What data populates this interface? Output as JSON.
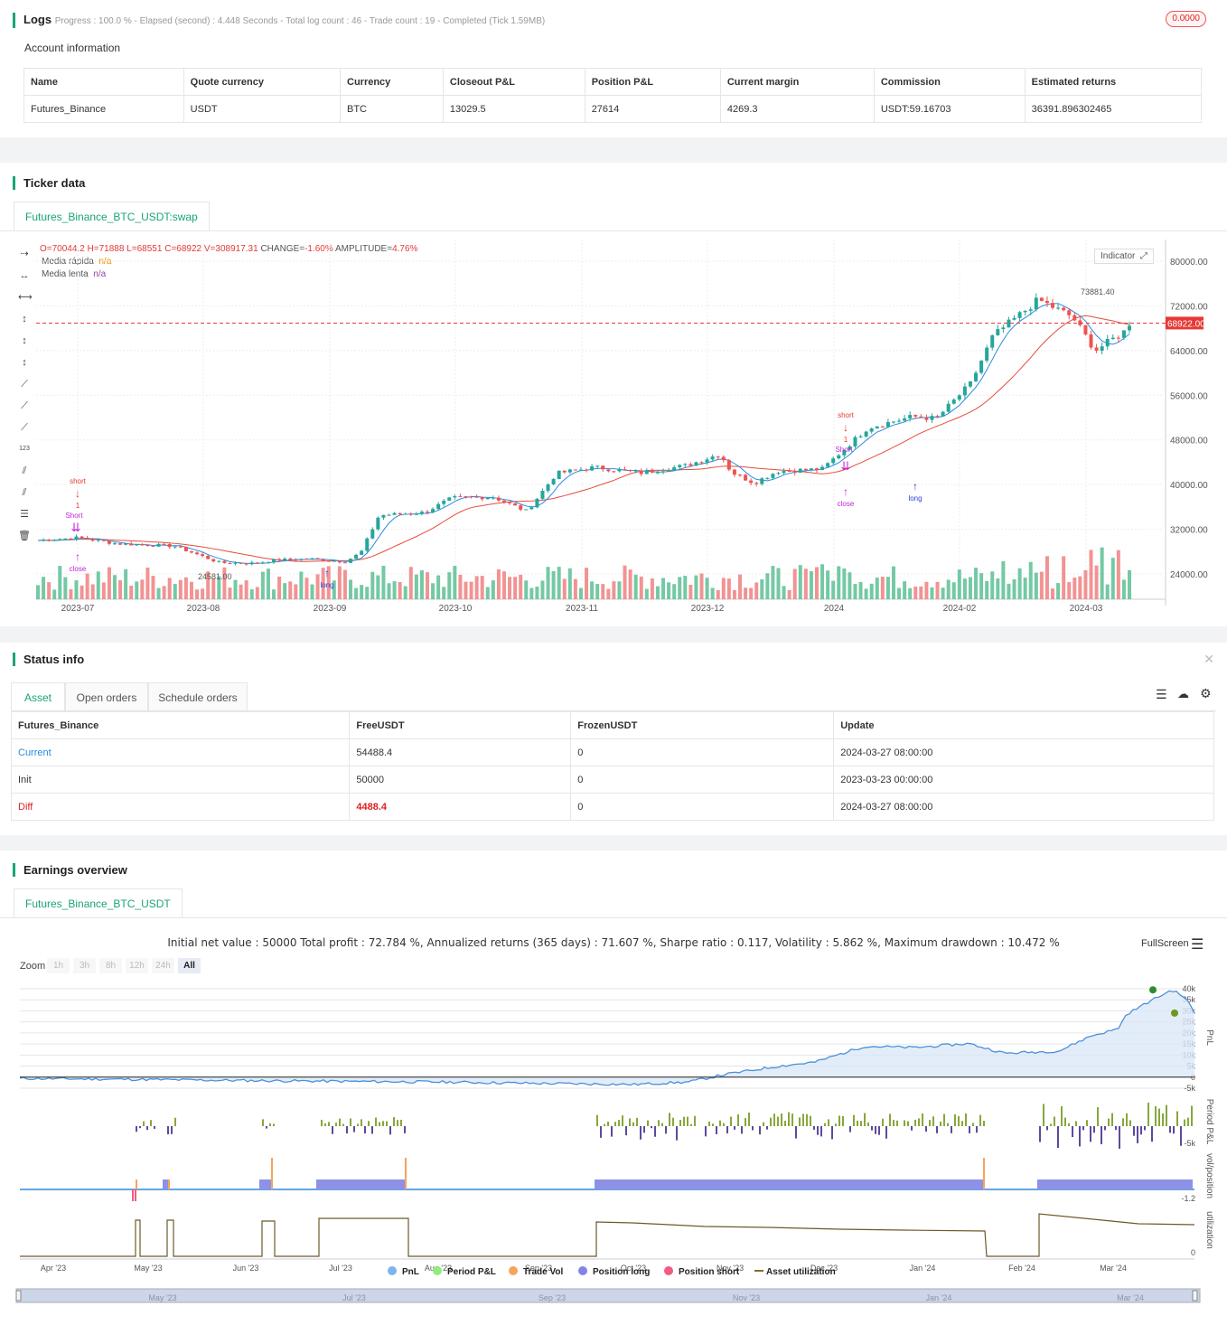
{
  "logs": {
    "title": "Logs",
    "progress": "Progress : 100.0 % - Elapsed (second) : 4.448 Seconds - Total log count : 46 - Trade count : 19 - Completed (Tick 1.59MB)",
    "badge": "0.0000"
  },
  "account": {
    "title": "Account information",
    "headers": [
      "Name",
      "Quote currency",
      "Currency",
      "Closeout P&L",
      "Position P&L",
      "Current margin",
      "Commission",
      "Estimated returns"
    ],
    "row": [
      "Futures_Binance",
      "USDT",
      "BTC",
      "13029.5",
      "27614",
      "4269.3",
      "USDT:59.16703",
      "36391.896302465"
    ]
  },
  "ticker": {
    "title": "Ticker data",
    "tab": "Futures_Binance_BTC_USDT:swap",
    "ohlc": {
      "o": "70044.2",
      "h": "71888",
      "l": "68551",
      "c": "68922",
      "v": "308917.31",
      "change": "-1.60%",
      "amplitude": "4.76%"
    },
    "ohlc_labels": {
      "o": "O=",
      "h": "H=",
      "l": "L=",
      "c": "C=",
      "v": "V=",
      "change": "CHANGE=",
      "amplitude": "AMPLITUDE="
    },
    "legend": [
      {
        "name": "Media rápida",
        "value": "n/a",
        "color": "#f08c00"
      },
      {
        "name": "Media lenta",
        "value": "n/a",
        "color": "#8e44ad"
      }
    ],
    "indicator_button": "Indicator",
    "price_label": "68922.00",
    "high_label": "73881.40",
    "low_label": "24581.00",
    "y_ticks": [
      "80000.00",
      "72000.00",
      "64000.00",
      "56000.00",
      "48000.00",
      "40000.00",
      "32000.00",
      "24000.00"
    ],
    "x_ticks": [
      "2023-07",
      "2023-08",
      "2023-09",
      "2023-10",
      "2023-11",
      "2023-12",
      "2024",
      "2024-02",
      "2024-03"
    ],
    "markers": {
      "short": "short",
      "close": "close",
      "long": "long",
      "one": "1",
      "short_bottom": "Short"
    }
  },
  "status": {
    "title": "Status info",
    "tabs": [
      "Asset",
      "Open orders",
      "Schedule orders"
    ],
    "headers": [
      "Futures_Binance",
      "FreeUSDT",
      "FrozenUSDT",
      "Update"
    ],
    "rows": [
      [
        "Current",
        "54488.4",
        "0",
        "2024-03-27 08:00:00"
      ],
      [
        "Init",
        "50000",
        "0",
        "2023-03-23 00:00:00"
      ],
      [
        "Diff",
        "4488.4",
        "0",
        "2024-03-27 08:00:00"
      ]
    ]
  },
  "earnings": {
    "title": "Earnings overview",
    "tab": "Futures_Binance_BTC_USDT",
    "summary": "Initial net value : 50000 Total profit : 72.784 %, Annualized returns (365 days) : 71.607 %, Sharpe ratio : 0.117, Volatility : 5.862 %, Maximum drawdown : 10.472 %",
    "fullscreen": "FullScreen",
    "zoom_label": "Zoom",
    "zoom_buttons": [
      "1h",
      "3h",
      "8h",
      "12h",
      "24h",
      "All"
    ],
    "pnl_ticks": [
      "40k",
      "35k",
      "30k",
      "25k",
      "20k",
      "15k",
      "10k",
      "5k",
      "0",
      "-5k"
    ],
    "axis_titles": [
      "PnL",
      "Period P&L",
      "vol/position",
      "utilization"
    ],
    "period_ticks": [
      "-5k"
    ],
    "vol_ticks": [
      "-1.2"
    ],
    "util_ticks": [
      "0"
    ],
    "x_ticks": [
      "Apr '23",
      "May '23",
      "Jun '23",
      "Jul '23",
      "Aug '23",
      "Sep '23",
      "Oct '23",
      "Nov '23",
      "Dec '23",
      "Jan '24",
      "Feb '24",
      "Mar '24"
    ],
    "nav_ticks": [
      "May '23",
      "Jul '23",
      "Sep '23",
      "Nov '23",
      "Jan '24",
      "Mar '24"
    ],
    "legend": [
      {
        "name": "PnL",
        "color": "#7cb5ec"
      },
      {
        "name": "Period P&L",
        "color": "#90ed7d"
      },
      {
        "name": "Trade Vol",
        "color": "#f7a35c"
      },
      {
        "name": "Position long",
        "color": "#8085e9"
      },
      {
        "name": "Position short",
        "color": "#f15c80"
      },
      {
        "name": "Asset utilization",
        "color": "#8d6a2f"
      }
    ]
  }
}
